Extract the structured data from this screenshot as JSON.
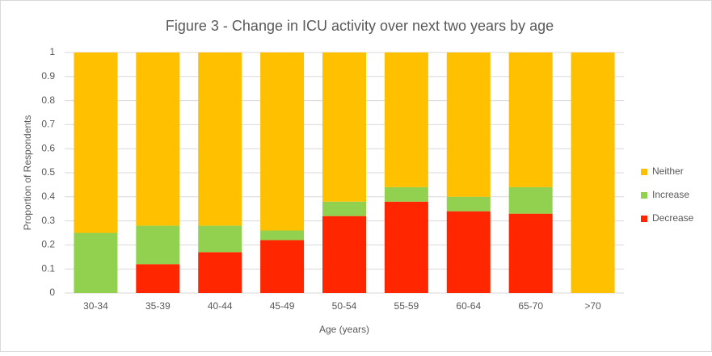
{
  "chart_data": {
    "type": "stacked_bar",
    "title": "Figure 3 - Change in ICU activity over next two years by age",
    "x_label": "Age (years)",
    "y_label": "Proportion of Respondents",
    "categories": [
      "30-34",
      "35-39",
      "40-44",
      "45-49",
      "50-54",
      "55-59",
      "60-64",
      "65-70",
      ">70"
    ],
    "series": [
      {
        "name": "Decrease",
        "color": "#ff2600",
        "values": [
          0,
          0.12,
          0.17,
          0.22,
          0.32,
          0.38,
          0.34,
          0.33,
          0
        ]
      },
      {
        "name": "Increase",
        "color": "#92d050",
        "values": [
          0.25,
          0.16,
          0.11,
          0.04,
          0.06,
          0.06,
          0.06,
          0.11,
          0
        ]
      },
      {
        "name": "Neither",
        "color": "#ffc000",
        "values": [
          0.75,
          0.72,
          0.72,
          0.74,
          0.62,
          0.56,
          0.6,
          0.56,
          1
        ]
      }
    ],
    "ylim": [
      0,
      1
    ],
    "yticks": [
      0,
      0.1,
      0.2,
      0.3,
      0.4,
      0.5,
      0.6,
      0.7,
      0.8,
      0.9,
      1
    ],
    "grid": true,
    "legend": "right"
  }
}
